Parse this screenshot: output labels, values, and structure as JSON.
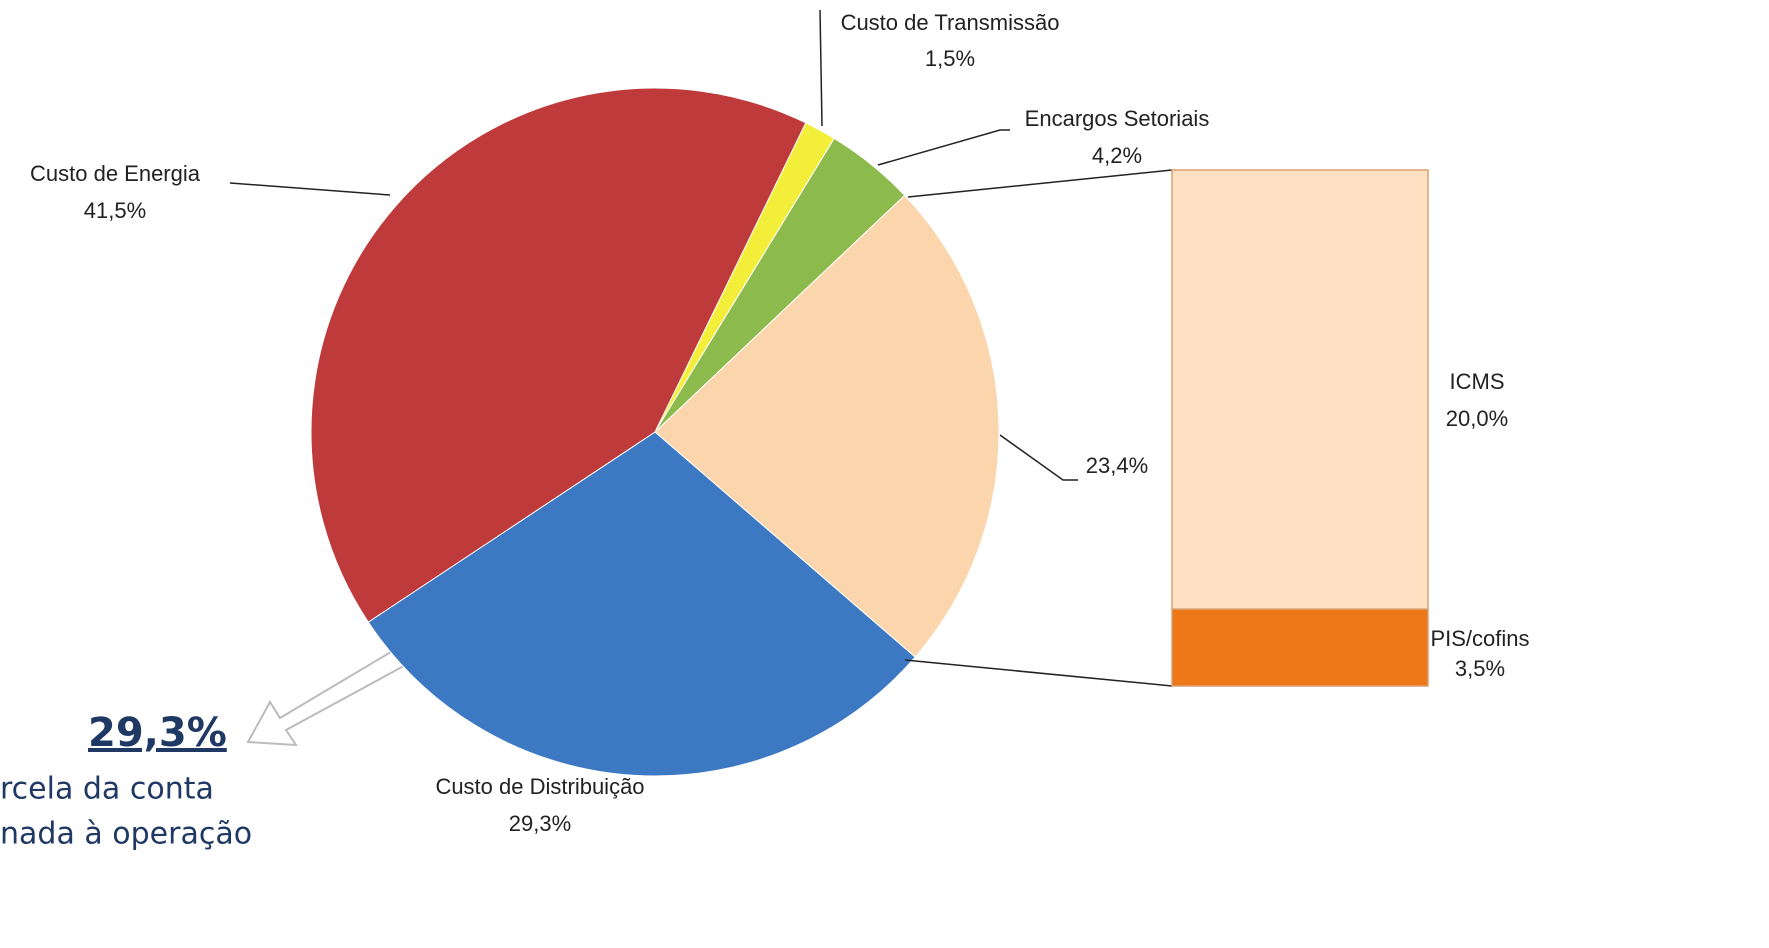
{
  "chart_data": [
    {
      "type": "pie",
      "categories": [
        "Custo de Transmissão",
        "Encargos Setoriais",
        null,
        "Custo de Distribuição",
        "Custo de Energia"
      ],
      "values": [
        1.5,
        4.2,
        23.4,
        29.3,
        41.5
      ],
      "value_labels": [
        "1,5%",
        "4,2%",
        "23,4%",
        "29,3%",
        "41,5%"
      ],
      "colors": [
        "#f2ee3a",
        "#8cba4c",
        "#fbd6ad",
        "#3d78c2",
        "#bf3a3a"
      ],
      "annotations": [
        "29,3%",
        "rcela da conta",
        "nada à operação"
      ]
    },
    {
      "type": "bar",
      "categories": [
        "ICMS",
        "PIS/cofins"
      ],
      "values": [
        20.0,
        3.5
      ],
      "value_labels": [
        "20,0%",
        "3,5%"
      ],
      "colors": [
        "#fde1c2",
        "#ee7818"
      ]
    }
  ]
}
